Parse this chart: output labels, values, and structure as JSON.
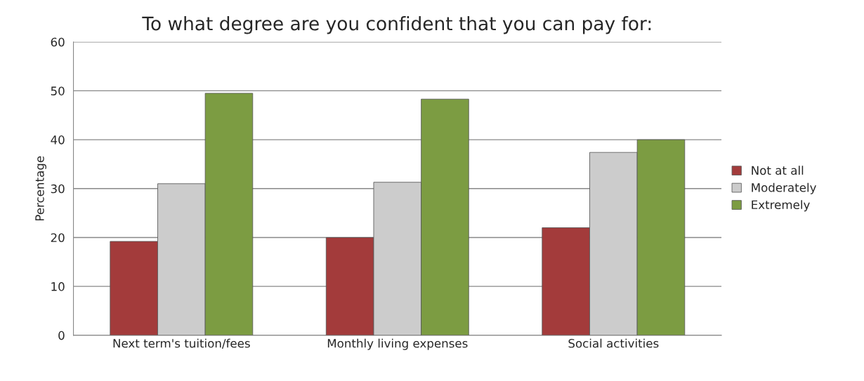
{
  "chart_data": {
    "type": "bar",
    "title": "To what degree are you confident that you can pay for:",
    "ylabel": "Percentage",
    "categories": [
      "Next term's tuition/fees",
      "Monthly living expenses",
      "Social activities"
    ],
    "series": [
      {
        "name": "Not at all",
        "color": "#a33b3b",
        "values": [
          19.2,
          20.0,
          22.0
        ]
      },
      {
        "name": "Moderately",
        "color": "#cccccc",
        "values": [
          31.0,
          31.3,
          37.4
        ]
      },
      {
        "name": "Extremely",
        "color": "#7c9c42",
        "values": [
          49.5,
          48.3,
          40.0
        ]
      }
    ],
    "ylim": [
      0,
      60
    ],
    "yticks": [
      0,
      10,
      20,
      30,
      40,
      50,
      60
    ],
    "grid": "y",
    "legend": "right"
  }
}
